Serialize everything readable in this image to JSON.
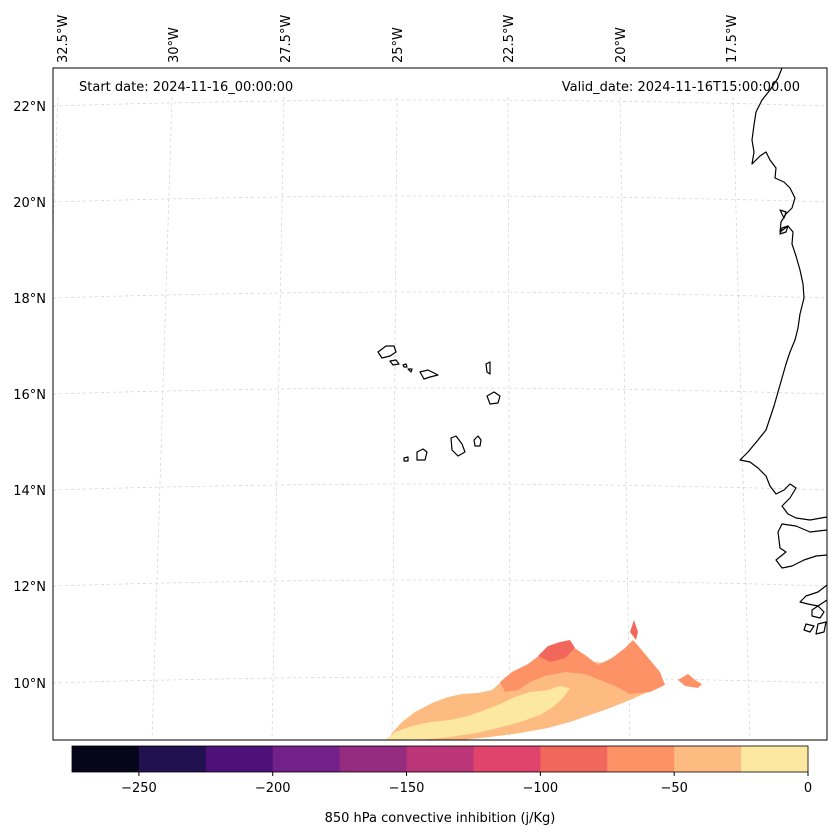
{
  "header": {
    "start_date": "Start date: 2024-11-16_00:00:00",
    "valid_date": "Valid_date: 2024-11-16T15:00:00.00"
  },
  "axes": {
    "lon_labels": [
      "32.5°W",
      "30°W",
      "27.5°W",
      "25°W",
      "22.5°W",
      "20°W",
      "17.5°W"
    ],
    "lat_labels": [
      "22°N",
      "20°N",
      "18°N",
      "16°N",
      "14°N",
      "12°N",
      "10°N"
    ]
  },
  "colorbar": {
    "label": "850 hPa convective inhibition (j/Kg)",
    "tick_labels": [
      "−250",
      "−200",
      "−150",
      "−100",
      "−50",
      "0"
    ],
    "colors": [
      "#06051a",
      "#221150",
      "#4e117b",
      "#72208a",
      "#962c80",
      "#bb3578",
      "#e0446c",
      "#f2675c",
      "#fd9266",
      "#febb81",
      "#fde8a2"
    ]
  },
  "chart_data": {
    "type": "heatmap",
    "title": "850 hPa convective inhibition",
    "variable": "850 hPa convective inhibition",
    "units": "j/Kg",
    "start_date": "2024-11-16_00:00:00",
    "valid_date": "2024-11-16T15:00:00.00",
    "lon_ticks": [
      -32.5,
      -30,
      -27.5,
      -25,
      -22.5,
      -20,
      -17.5
    ],
    "lat_ticks": [
      22,
      20,
      18,
      16,
      14,
      12,
      10
    ],
    "color_levels": [
      -275,
      -250,
      -225,
      -200,
      -175,
      -150,
      -125,
      -100,
      -75,
      -50,
      -25,
      0
    ],
    "colorbar_ticks": [
      -250,
      -200,
      -150,
      -100,
      -50,
      0
    ],
    "colorbar_range": [
      -275,
      0
    ]
  }
}
